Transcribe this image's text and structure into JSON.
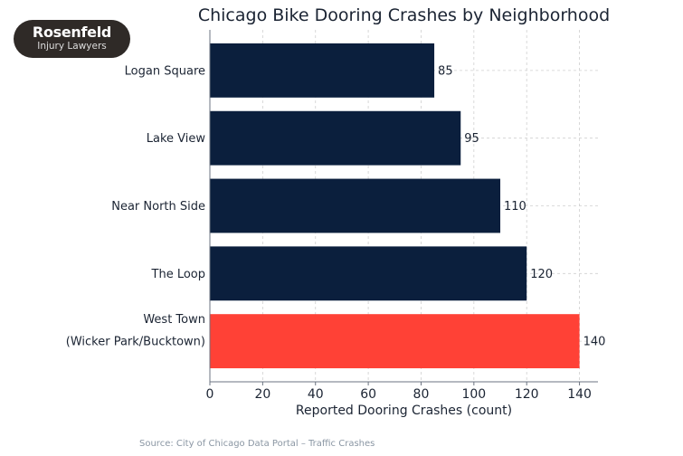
{
  "logo": {
    "line1": "Rosenfeld",
    "line2": "Injury Lawyers"
  },
  "source": "Source: City of Chicago Data Portal – Traffic Crashes",
  "chart_data": {
    "type": "bar",
    "orientation": "horizontal",
    "title": "Chicago Bike Dooring Crashes by Neighborhood",
    "xlabel": "Reported Dooring Crashes (count)",
    "ylabel": "",
    "categories": [
      [
        "Logan Square"
      ],
      [
        "Lake View"
      ],
      [
        "Near North Side"
      ],
      [
        "The Loop"
      ],
      [
        "West Town",
        "(Wicker Park/Bucktown)"
      ]
    ],
    "values": [
      85,
      95,
      110,
      120,
      140
    ],
    "data_labels": [
      "85",
      "95",
      "110",
      "120",
      "140"
    ],
    "highlight_index": 4,
    "colors": {
      "default": "#0b1f3d",
      "highlight": "#ff4136"
    },
    "xlim": [
      0,
      147
    ],
    "xticks": [
      0,
      20,
      40,
      60,
      80,
      100,
      120,
      140
    ],
    "grid": true
  }
}
